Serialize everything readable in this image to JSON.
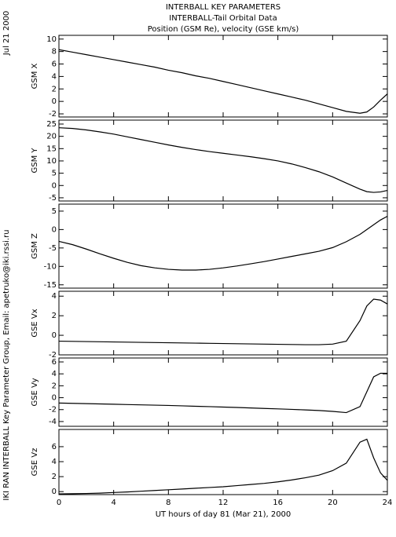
{
  "title": [
    "INTERBALL KEY PARAMETERS",
    "INTERBALL-Tail Orbital Data",
    "Position (GSM Re), velocity (GSE km/s)"
  ],
  "date": "Jul 21 2000",
  "credit": "IKI RAN INTERBALL Key Parameter Group, Email: apetruko@iki.rssi.ru",
  "chart_data": [
    {
      "type": "line",
      "ylabel": "GSM X",
      "color": "#000000",
      "x": [
        0,
        1,
        2,
        3,
        4,
        5,
        6,
        7,
        8,
        9,
        10,
        11,
        12,
        13,
        14,
        15,
        16,
        17,
        18,
        19,
        20,
        21,
        22,
        22.5,
        23,
        23.5,
        24
      ],
      "xlim": [
        0,
        24
      ],
      "xticks": [
        0,
        4,
        8,
        12,
        16,
        20,
        24
      ],
      "values": [
        8.3,
        7.9,
        7.5,
        7.1,
        6.7,
        6.3,
        5.9,
        5.5,
        5.0,
        4.6,
        4.1,
        3.7,
        3.2,
        2.7,
        2.2,
        1.7,
        1.2,
        0.7,
        0.2,
        -0.4,
        -1.0,
        -1.6,
        -1.9,
        -1.7,
        -0.9,
        0.2,
        1.2
      ],
      "ylim": [
        -2.5,
        10.6
      ],
      "yticks": [
        -2,
        0,
        2,
        4,
        6,
        8,
        10
      ]
    },
    {
      "type": "line",
      "ylabel": "GSM Y",
      "color": "#000000",
      "x": [
        0,
        1,
        2,
        3,
        4,
        5,
        6,
        7,
        8,
        9,
        10,
        11,
        12,
        13,
        14,
        15,
        16,
        17,
        18,
        19,
        20,
        21,
        22,
        22.5,
        23,
        23.5,
        24
      ],
      "xlim": [
        0,
        24
      ],
      "xticks": [
        0,
        4,
        8,
        12,
        16,
        20,
        24
      ],
      "values": [
        23.5,
        23.2,
        22.6,
        21.8,
        20.9,
        19.8,
        18.7,
        17.6,
        16.5,
        15.5,
        14.6,
        13.8,
        13.1,
        12.4,
        11.7,
        10.9,
        10.0,
        8.8,
        7.3,
        5.6,
        3.5,
        1.0,
        -1.5,
        -2.5,
        -2.8,
        -2.6,
        -2.0
      ],
      "ylim": [
        -6.3,
        26.6
      ],
      "yticks": [
        -5,
        0,
        5,
        10,
        15,
        20,
        25
      ]
    },
    {
      "type": "line",
      "ylabel": "GSM Z",
      "color": "#000000",
      "x": [
        0,
        1,
        2,
        3,
        4,
        5,
        6,
        7,
        8,
        9,
        10,
        11,
        12,
        13,
        14,
        15,
        16,
        17,
        18,
        19,
        20,
        21,
        22,
        22.5,
        23,
        23.5,
        24
      ],
      "xlim": [
        0,
        24
      ],
      "xticks": [
        0,
        4,
        8,
        12,
        16,
        20,
        24
      ],
      "values": [
        -3.2,
        -4.1,
        -5.3,
        -6.6,
        -7.8,
        -8.9,
        -9.8,
        -10.4,
        -10.8,
        -11.0,
        -11.0,
        -10.8,
        -10.4,
        -9.9,
        -9.3,
        -8.7,
        -8.0,
        -7.3,
        -6.6,
        -5.9,
        -4.9,
        -3.3,
        -1.3,
        0,
        1.3,
        2.6,
        3.6
      ],
      "ylim": [
        -15.9,
        6.9
      ],
      "yticks": [
        -15,
        -10,
        -5,
        0,
        5
      ]
    },
    {
      "type": "line",
      "ylabel": "GSE Vx",
      "color": "#000000",
      "x": [
        0,
        1,
        2,
        3,
        4,
        5,
        6,
        7,
        8,
        9,
        10,
        11,
        12,
        13,
        14,
        15,
        16,
        17,
        18,
        19,
        20,
        21,
        22,
        22.5,
        23,
        23.5,
        24
      ],
      "xlim": [
        0,
        24
      ],
      "xticks": [
        0,
        4,
        8,
        12,
        16,
        20,
        24
      ],
      "values": [
        -0.6,
        -0.62,
        -0.64,
        -0.66,
        -0.68,
        -0.7,
        -0.72,
        -0.74,
        -0.76,
        -0.78,
        -0.8,
        -0.82,
        -0.84,
        -0.86,
        -0.88,
        -0.9,
        -0.92,
        -0.94,
        -0.96,
        -0.96,
        -0.9,
        -0.6,
        1.5,
        3.0,
        3.7,
        3.6,
        3.2
      ],
      "ylim": [
        -2,
        4.5
      ],
      "yticks": [
        -2,
        0,
        2,
        4
      ]
    },
    {
      "type": "line",
      "ylabel": "GSE Vy",
      "color": "#000000",
      "x": [
        0,
        1,
        2,
        3,
        4,
        5,
        6,
        7,
        8,
        9,
        10,
        11,
        12,
        13,
        14,
        15,
        16,
        17,
        18,
        19,
        20,
        21,
        22,
        22.5,
        23,
        23.5,
        24
      ],
      "xlim": [
        0,
        24
      ],
      "xticks": [
        0,
        4,
        8,
        12,
        16,
        20,
        24
      ],
      "values": [
        -0.9,
        -0.95,
        -1.0,
        -1.05,
        -1.1,
        -1.15,
        -1.2,
        -1.25,
        -1.3,
        -1.37,
        -1.44,
        -1.5,
        -1.57,
        -1.64,
        -1.72,
        -1.8,
        -1.88,
        -1.96,
        -2.05,
        -2.15,
        -2.3,
        -2.5,
        -1.5,
        1.0,
        3.5,
        4.1,
        4.1
      ],
      "ylim": [
        -4.8,
        6.66
      ],
      "yticks": [
        -4,
        -2,
        0,
        2,
        4,
        6
      ]
    },
    {
      "type": "line",
      "ylabel": "GSE Vz",
      "color": "#000000",
      "x": [
        0,
        1,
        2,
        3,
        4,
        5,
        6,
        7,
        8,
        9,
        10,
        11,
        12,
        13,
        14,
        15,
        16,
        17,
        18,
        19,
        20,
        21,
        22,
        22.5,
        23,
        23.5,
        24
      ],
      "xlim": [
        0,
        24
      ],
      "xticks": [
        0,
        4,
        8,
        12,
        16,
        20,
        24
      ],
      "xlabel": "UT hours of day  81 (Mar 21), 2000",
      "values": [
        -0.3,
        -0.28,
        -0.25,
        -0.2,
        -0.12,
        -0.05,
        0.05,
        0.15,
        0.25,
        0.35,
        0.45,
        0.55,
        0.65,
        0.8,
        0.95,
        1.1,
        1.3,
        1.55,
        1.85,
        2.2,
        2.8,
        3.8,
        6.6,
        7.0,
        4.5,
        2.5,
        1.5
      ],
      "ylim": [
        -0.4,
        8.3
      ],
      "yticks": [
        0,
        2,
        4,
        6
      ]
    }
  ]
}
